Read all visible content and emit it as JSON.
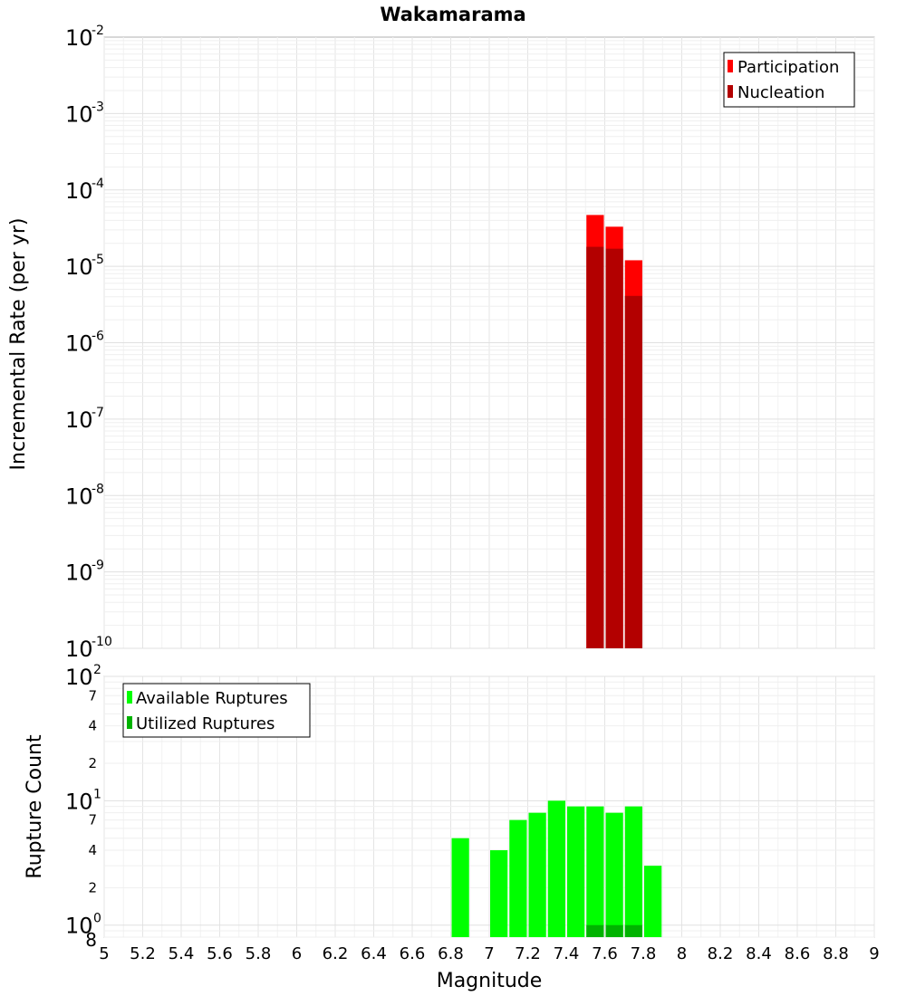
{
  "chart_data": [
    {
      "type": "bar",
      "title": "Wakamarama",
      "xlabel": "",
      "ylabel": "Incremental Rate (per yr)",
      "xlim": [
        5,
        9
      ],
      "ylim": [
        1e-10,
        0.01
      ],
      "yscale": "log",
      "grid": true,
      "legend_position": "top-right",
      "bin_width": 0.1,
      "colors": {
        "Participation": "#ff0000",
        "Nucleation": "#b30000"
      },
      "series": [
        {
          "name": "Participation",
          "x": [
            7.55,
            7.65,
            7.75
          ],
          "values": [
            4.7e-05,
            3.3e-05,
            1.2e-05
          ]
        },
        {
          "name": "Nucleation",
          "x": [
            7.55,
            7.65,
            7.75
          ],
          "values": [
            1.8e-05,
            1.7e-05,
            4.1e-06
          ]
        }
      ],
      "y_tick_labels": [
        {
          "base": "10",
          "exp": "-2"
        },
        {
          "base": "10",
          "exp": "-3"
        },
        {
          "base": "10",
          "exp": "-4"
        },
        {
          "base": "10",
          "exp": "-5"
        },
        {
          "base": "10",
          "exp": "-6"
        },
        {
          "base": "10",
          "exp": "-7"
        },
        {
          "base": "10",
          "exp": "-8"
        },
        {
          "base": "10",
          "exp": "-9"
        },
        {
          "base": "10",
          "exp": "-10"
        }
      ]
    },
    {
      "type": "bar",
      "xlabel": "Magnitude",
      "ylabel": "Rupture Count",
      "xlim": [
        5,
        9
      ],
      "ylim": [
        0.8,
        100
      ],
      "yscale": "log",
      "grid": true,
      "legend_position": "top-left",
      "bin_width": 0.1,
      "colors": {
        "Available Ruptures": "#00ff00",
        "Utilized Ruptures": "#00b300"
      },
      "series": [
        {
          "name": "Available Ruptures",
          "x": [
            6.85,
            7.05,
            7.15,
            7.25,
            7.35,
            7.45,
            7.55,
            7.65,
            7.75,
            7.85
          ],
          "values": [
            5,
            4,
            7,
            8,
            10,
            9,
            9,
            8,
            9,
            3
          ]
        },
        {
          "name": "Utilized Ruptures",
          "x": [
            7.55,
            7.65,
            7.75
          ],
          "values": [
            1,
            1,
            1
          ]
        }
      ],
      "x_tick_labels": [
        "5",
        "5.2",
        "5.4",
        "5.6",
        "5.8",
        "6",
        "6.2",
        "6.4",
        "6.6",
        "6.8",
        "7",
        "7.2",
        "7.4",
        "7.6",
        "7.8",
        "8",
        "8.2",
        "8.4",
        "8.6",
        "8.8",
        "9"
      ],
      "y_tick_labels": [
        {
          "base": "10",
          "exp": "2"
        },
        {
          "base": "10",
          "exp": "1"
        },
        {
          "base": "10",
          "exp": "0"
        }
      ],
      "y_minor_labels": [
        "7",
        "4",
        "2",
        "7",
        "4",
        "2"
      ],
      "y_bottom_label": "8"
    }
  ]
}
